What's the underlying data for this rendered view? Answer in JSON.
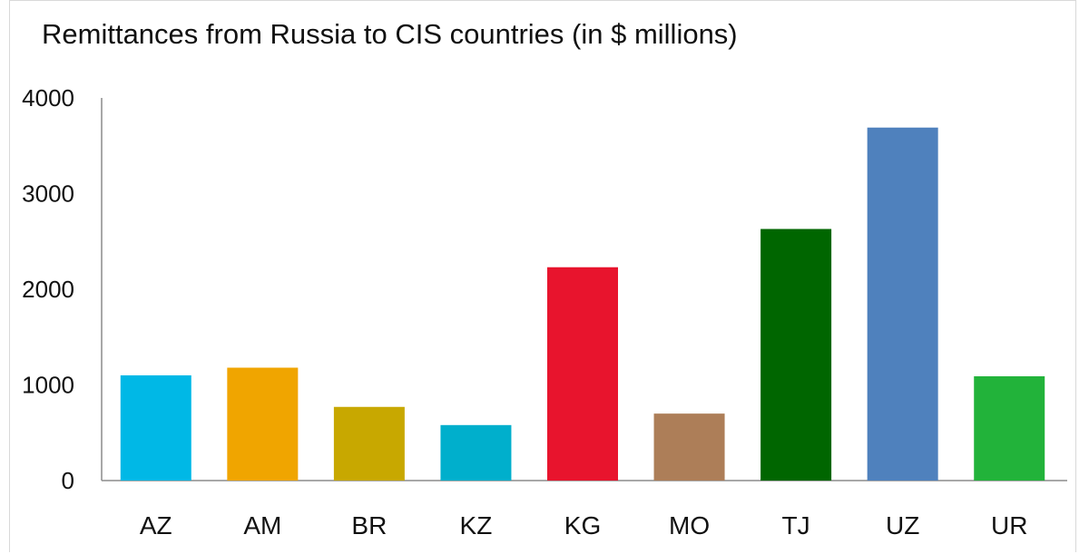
{
  "chart_data": {
    "type": "bar",
    "title": "Remittances from Russia to CIS countries (in $ millions)",
    "xlabel": "",
    "ylabel": "",
    "categories": [
      "AZ",
      "AM",
      "BR",
      "KZ",
      "KG",
      "MO",
      "TJ",
      "UZ",
      "UR"
    ],
    "values": [
      1100,
      1180,
      770,
      580,
      2230,
      700,
      2630,
      3690,
      1090
    ],
    "colors": [
      "#00b8e6",
      "#f0a500",
      "#c8a800",
      "#00afcc",
      "#e8142d",
      "#ad7e58",
      "#006600",
      "#4f81bd",
      "#22b33a"
    ],
    "ylim": [
      0,
      4000
    ],
    "yticks": [
      0,
      1000,
      2000,
      3000,
      4000
    ],
    "grid": false,
    "legend": "none"
  }
}
